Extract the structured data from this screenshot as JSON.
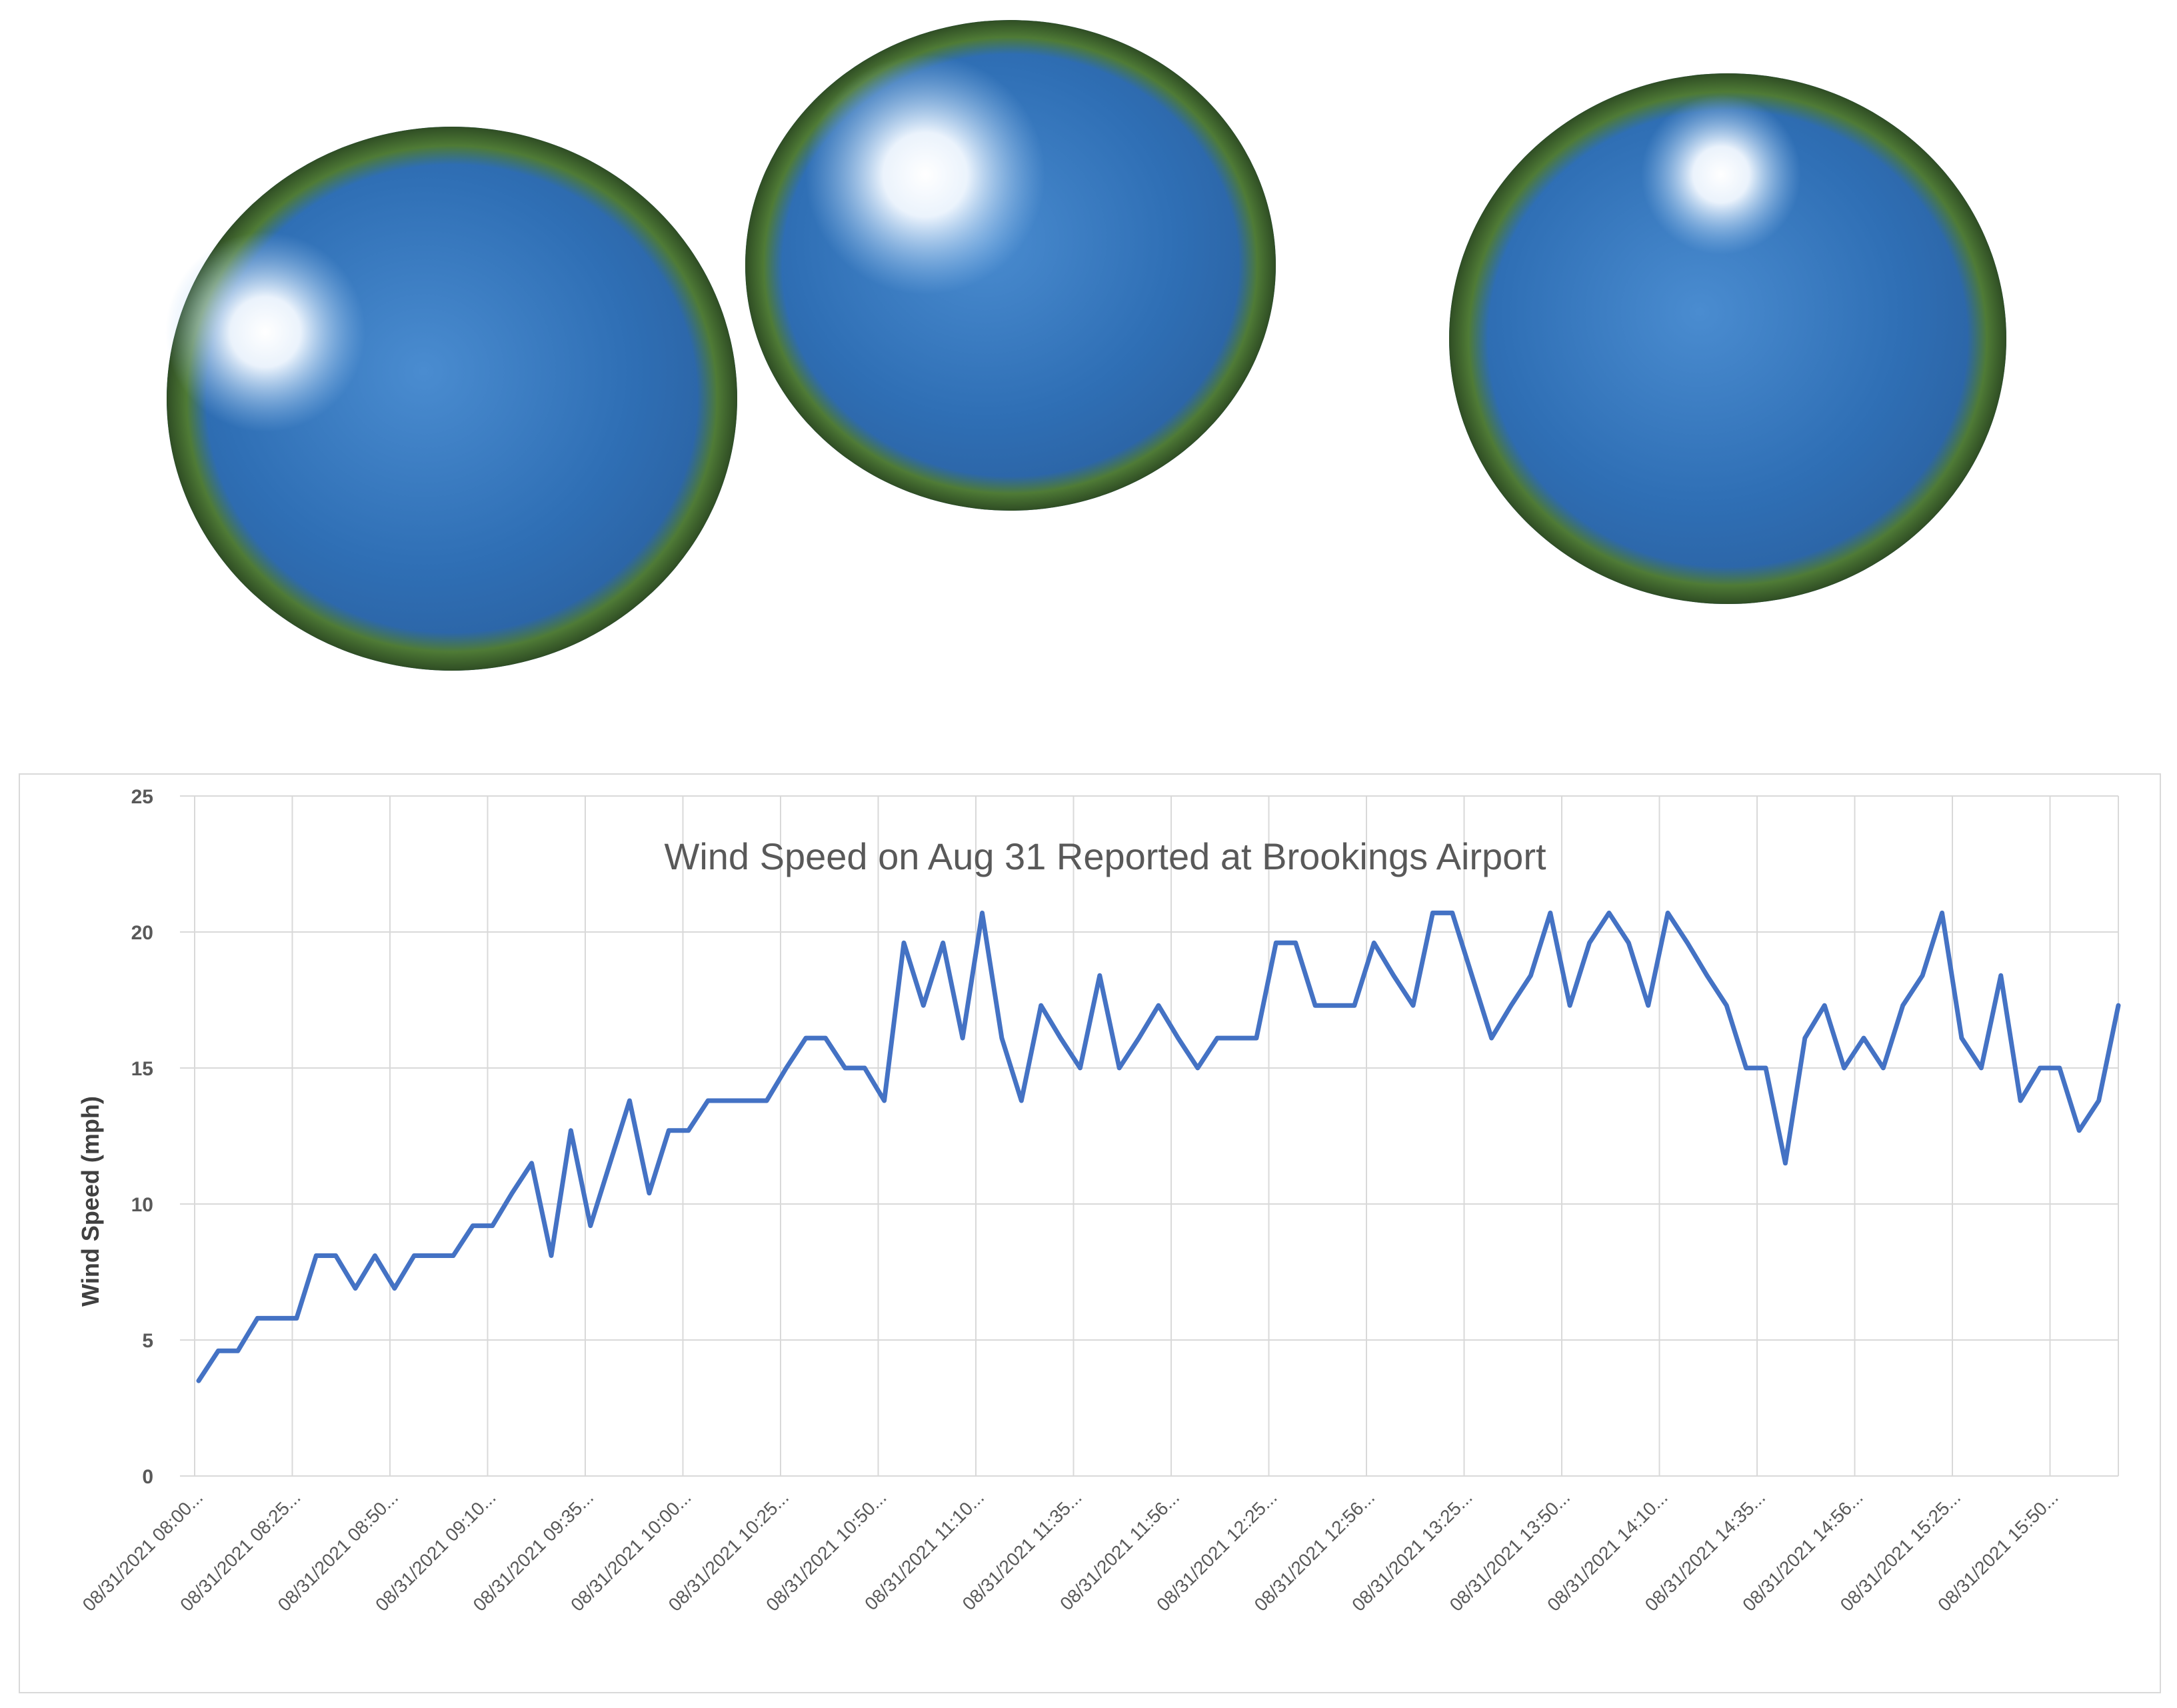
{
  "photos": {
    "count": 3,
    "description_icon": "fisheye-sky-photo"
  },
  "chart_data": {
    "type": "line",
    "title": "Wind Speed on Aug 31 Reported at Brookings Airport",
    "xlabel": "",
    "ylabel": "Wind Speed (mph)",
    "ylim": [
      0,
      25
    ],
    "yticks": [
      0,
      5,
      10,
      15,
      20,
      25
    ],
    "grid": true,
    "xtick_labels": [
      "08/31/2021 08:00...",
      "08/31/2021 08:25...",
      "08/31/2021 08:50...",
      "08/31/2021 09:10...",
      "08/31/2021 09:35...",
      "08/31/2021 10:00...",
      "08/31/2021 10:25...",
      "08/31/2021 10:50...",
      "08/31/2021 11:10...",
      "08/31/2021 11:35...",
      "08/31/2021 11:56...",
      "08/31/2021 12:25...",
      "08/31/2021 12:56...",
      "08/31/2021 13:25...",
      "08/31/2021 13:50...",
      "08/31/2021 14:10...",
      "08/31/2021 14:35...",
      "08/31/2021 14:56...",
      "08/31/2021 15:25...",
      "08/31/2021 15:50..."
    ],
    "series": [
      {
        "color": "#4472c4",
        "values": [
          3.5,
          4.6,
          4.6,
          5.8,
          5.8,
          5.8,
          8.1,
          8.1,
          6.9,
          8.1,
          6.9,
          8.1,
          8.1,
          8.1,
          9.2,
          9.2,
          10.4,
          11.5,
          8.1,
          12.7,
          9.2,
          11.5,
          13.8,
          10.4,
          12.7,
          12.7,
          13.8,
          13.8,
          13.8,
          13.8,
          15.0,
          16.1,
          16.1,
          15.0,
          15.0,
          13.8,
          19.6,
          17.3,
          19.6,
          16.1,
          20.7,
          16.1,
          13.8,
          17.3,
          16.1,
          15.0,
          18.4,
          15.0,
          16.1,
          17.3,
          16.1,
          15.0,
          16.1,
          16.1,
          16.1,
          19.6,
          19.6,
          17.3,
          17.3,
          17.3,
          19.6,
          18.4,
          17.3,
          20.7,
          20.7,
          18.4,
          16.1,
          17.3,
          18.4,
          20.7,
          17.3,
          19.6,
          20.7,
          19.6,
          17.3,
          20.7,
          19.6,
          18.4,
          17.3,
          15.0,
          15.0,
          11.5,
          16.1,
          17.3,
          15.0,
          16.1,
          15.0,
          17.3,
          18.4,
          20.7,
          16.1,
          15.0,
          18.4,
          13.8,
          15.0,
          15.0,
          12.7,
          13.8,
          17.3
        ]
      }
    ]
  }
}
